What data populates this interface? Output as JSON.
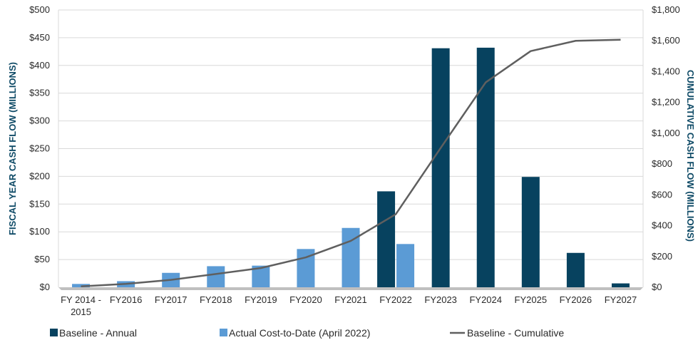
{
  "chart_data": {
    "type": "bar",
    "categories": [
      [
        "FY 2014 -",
        "2015"
      ],
      [
        "FY2016"
      ],
      [
        "FY2017"
      ],
      [
        "FY2018"
      ],
      [
        "FY2019"
      ],
      [
        "FY2020"
      ],
      [
        "FY2021"
      ],
      [
        "FY2022"
      ],
      [
        "FY2023"
      ],
      [
        "FY2024"
      ],
      [
        "FY2025"
      ],
      [
        "FY2026"
      ],
      [
        "FY2027"
      ]
    ],
    "series": [
      {
        "name": "Baseline - Annual",
        "kind": "bar",
        "axis": "left",
        "color": "#07425f",
        "values": [
          null,
          null,
          null,
          null,
          null,
          null,
          null,
          173,
          431,
          432,
          199,
          62,
          7
        ]
      },
      {
        "name": "Actual Cost-to-Date (April 2022)",
        "kind": "bar",
        "axis": "left",
        "color": "#5b9bd5",
        "values": [
          6,
          11,
          26,
          38,
          39,
          69,
          107,
          78,
          null,
          null,
          null,
          null,
          null
        ]
      },
      {
        "name": "Baseline - Cumulative",
        "kind": "line",
        "axis": "right",
        "color": "#5f5f5f",
        "values": [
          6,
          22,
          48,
          86,
          125,
          194,
          301,
          474,
          905,
          1330,
          1533,
          1600,
          1607
        ]
      }
    ],
    "ylabel": "FISCAL YEAR CASH FLOW (MILLIONS)",
    "y2label": "CUMULATIVE CASH FLOW (MILLIONS)",
    "ylim": [
      0,
      500
    ],
    "y2lim": [
      0,
      1800
    ],
    "yticks": [
      "$0",
      "$50",
      "$100",
      "$150",
      "$200",
      "$250",
      "$300",
      "$350",
      "$400",
      "$450",
      "$500"
    ],
    "y2ticks": [
      "$0",
      "$200",
      "$400",
      "$600",
      "$800",
      "$1,000",
      "$1,200",
      "$1,400",
      "$1,600",
      "$1,800"
    ],
    "grid": true,
    "legend_position": "bottom",
    "colors": {
      "gridline": "#d9d9d9",
      "floor": "#bfbfbf",
      "axis_title": "#0e4a66"
    }
  }
}
